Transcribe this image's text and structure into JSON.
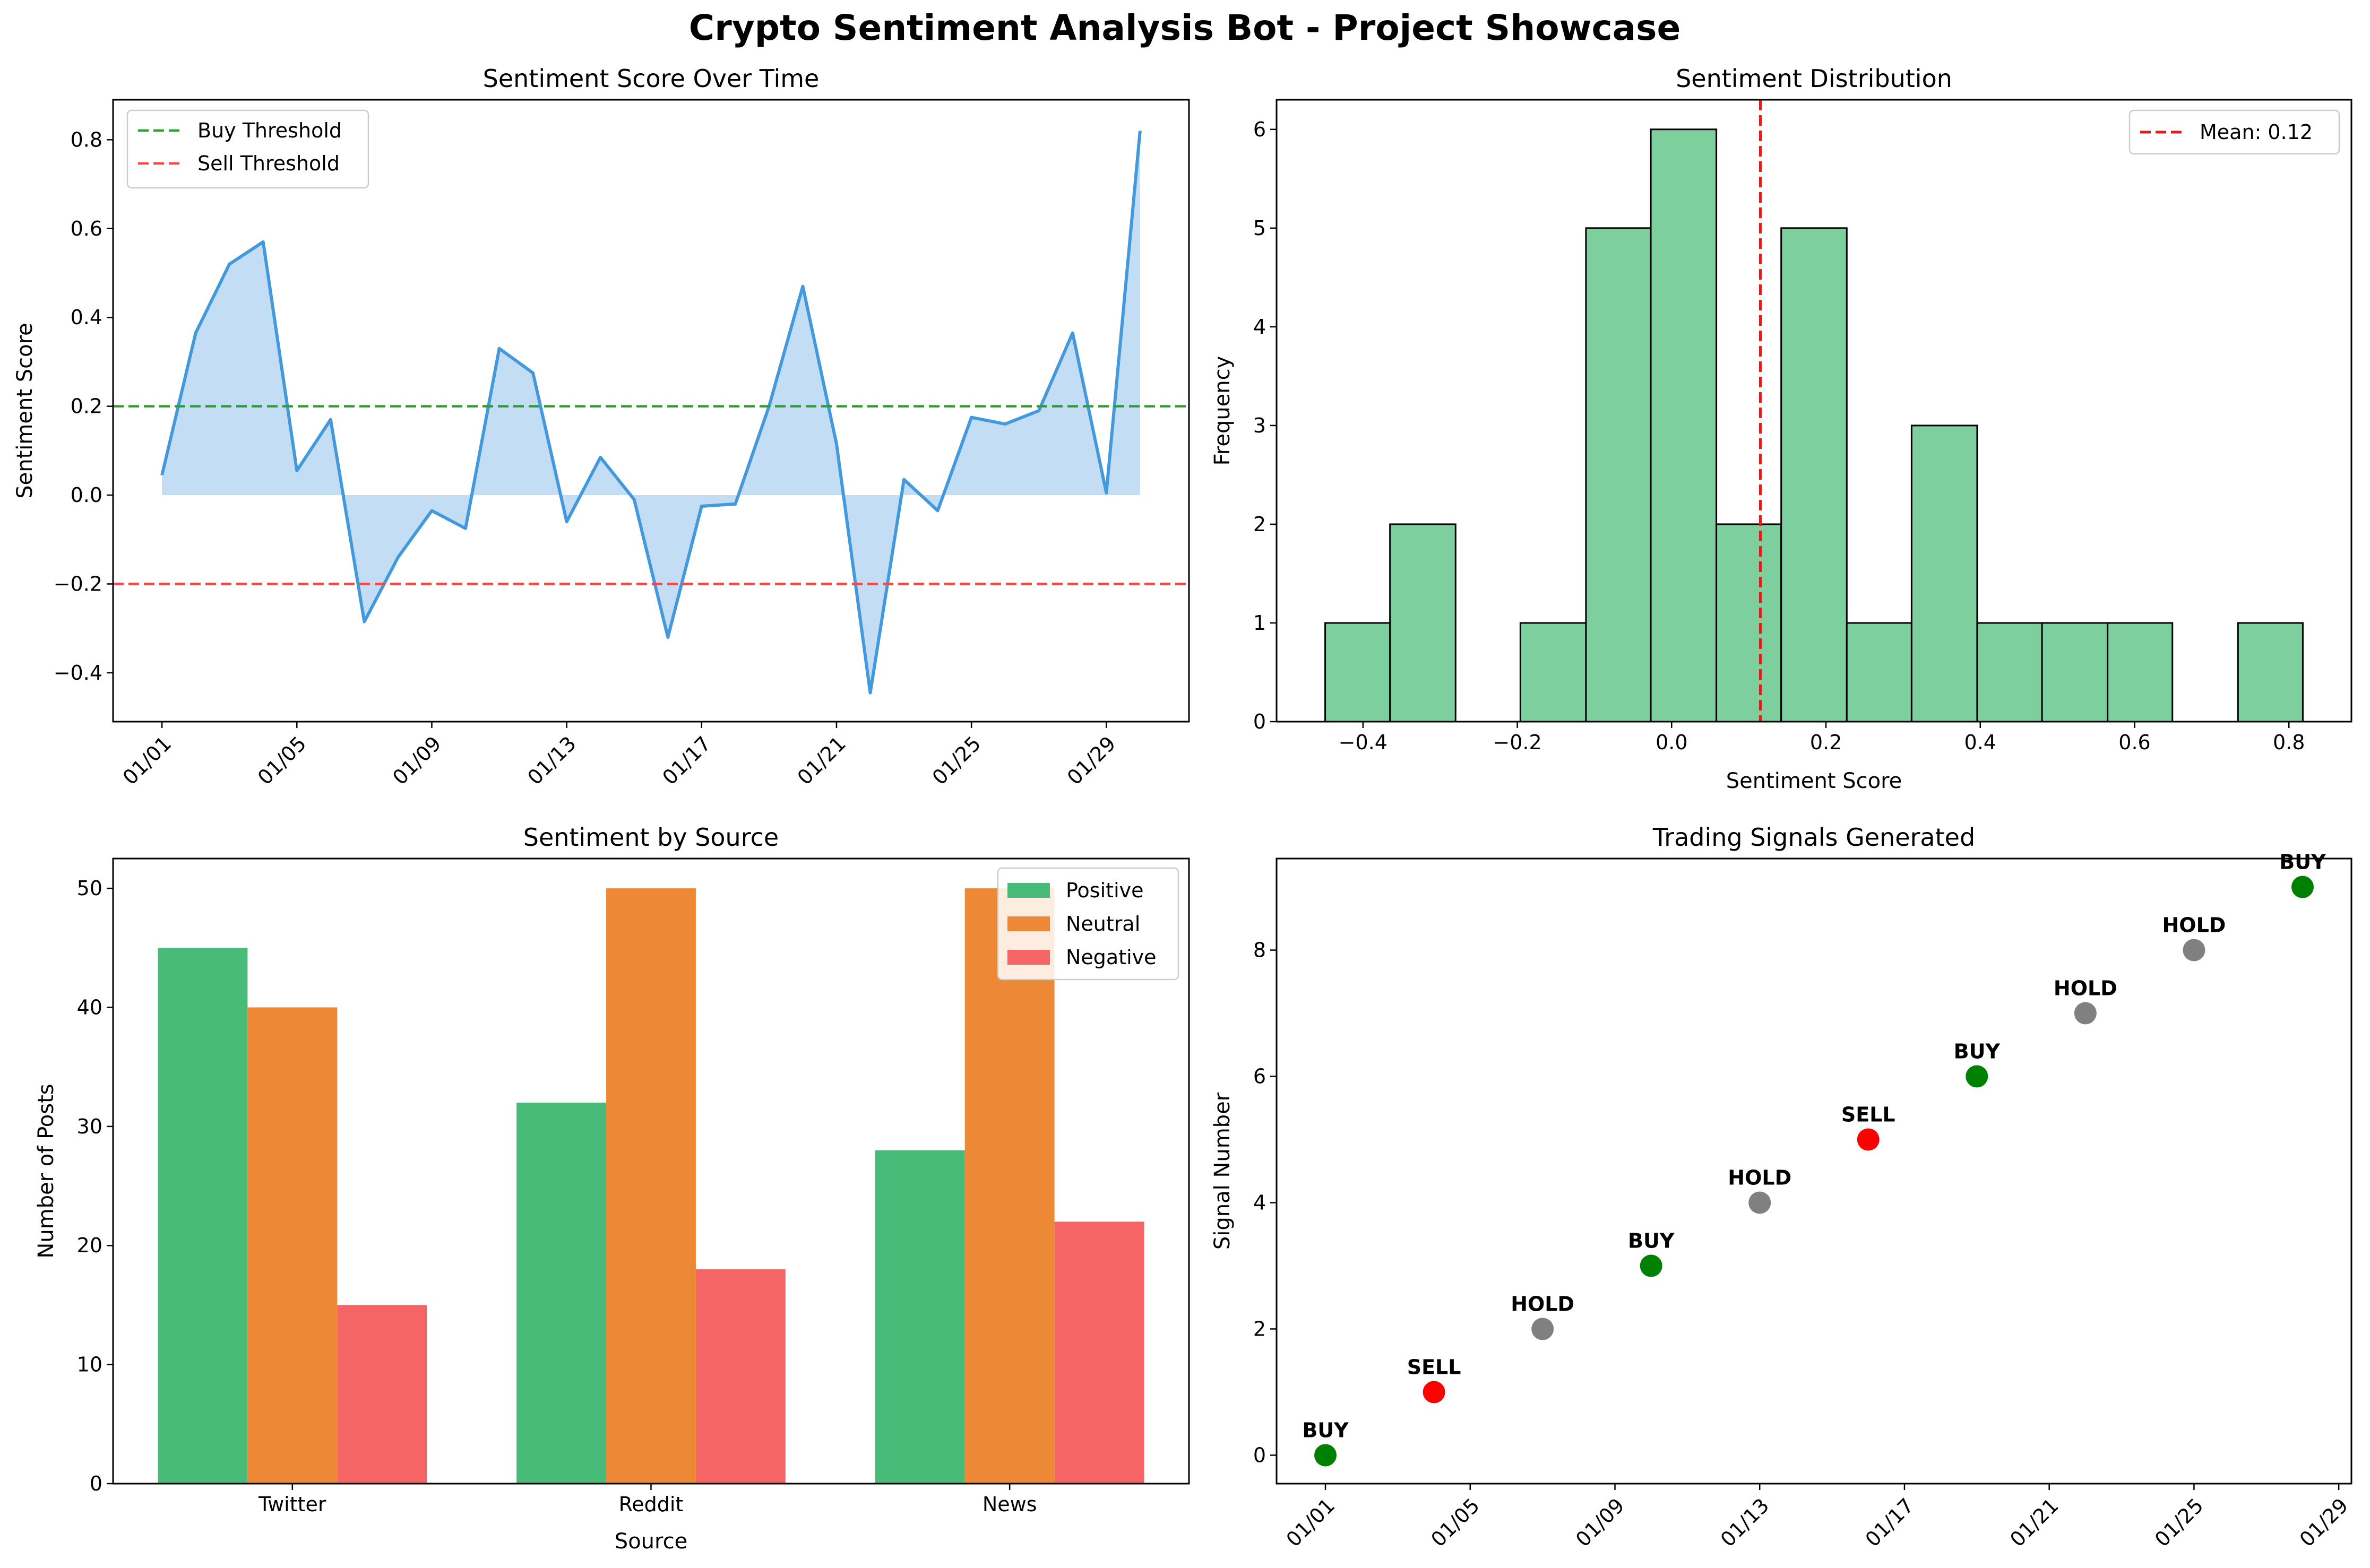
{
  "title": "Crypto Sentiment Analysis Bot - Project Showcase",
  "chart_data": [
    {
      "id": "sentiment_over_time",
      "type": "line",
      "title": "Sentiment Score Over Time",
      "xlabel": "",
      "ylabel": "Sentiment Score",
      "x": [
        "01/01",
        "01/02",
        "01/03",
        "01/04",
        "01/05",
        "01/06",
        "01/07",
        "01/08",
        "01/09",
        "01/10",
        "01/11",
        "01/12",
        "01/13",
        "01/14",
        "01/15",
        "01/16",
        "01/17",
        "01/18",
        "01/19",
        "01/20",
        "01/21",
        "01/22",
        "01/23",
        "01/24",
        "01/25",
        "01/26",
        "01/27",
        "01/28",
        "01/29",
        "01/30"
      ],
      "series": [
        {
          "values": [
            0.045,
            0.365,
            0.52,
            0.57,
            0.055,
            0.17,
            -0.285,
            -0.14,
            -0.035,
            -0.075,
            0.33,
            0.275,
            -0.06,
            0.085,
            -0.01,
            -0.32,
            -0.025,
            -0.02,
            0.2,
            0.47,
            0.115,
            -0.445,
            0.035,
            -0.035,
            0.175,
            0.16,
            0.19,
            0.365,
            0.005,
            0.82
          ],
          "color": "#4499dd",
          "fill": "#c2ddf4"
        }
      ],
      "hlines": [
        {
          "label": "Buy Threshold",
          "y": 0.2,
          "color": "#2ca02c"
        },
        {
          "label": "Sell Threshold",
          "y": -0.2,
          "color": "#ff4444"
        }
      ],
      "x_ticks": [
        "01/01",
        "01/05",
        "01/09",
        "01/13",
        "01/17",
        "01/21",
        "01/25",
        "01/29"
      ],
      "y_ticks": [
        -0.4,
        -0.2,
        0.0,
        0.2,
        0.4,
        0.6,
        0.8
      ],
      "ylim": [
        -0.51,
        0.89
      ],
      "legend_loc": "upper left"
    },
    {
      "id": "sentiment_distribution",
      "type": "bar",
      "title": "Sentiment Distribution",
      "xlabel": "Sentiment Score",
      "ylabel": "Frequency",
      "bins": [
        [
          -0.449,
          -0.365,
          1
        ],
        [
          -0.365,
          -0.28,
          2
        ],
        [
          -0.28,
          -0.196,
          0
        ],
        [
          -0.196,
          -0.111,
          1
        ],
        [
          -0.111,
          -0.027,
          5
        ],
        [
          -0.027,
          0.058,
          6
        ],
        [
          0.058,
          0.142,
          2
        ],
        [
          0.142,
          0.227,
          5
        ],
        [
          0.227,
          0.311,
          1
        ],
        [
          0.311,
          0.396,
          3
        ],
        [
          0.396,
          0.48,
          1
        ],
        [
          0.48,
          0.565,
          1
        ],
        [
          0.565,
          0.649,
          1
        ],
        [
          0.649,
          0.734,
          0
        ],
        [
          0.734,
          0.818,
          1
        ]
      ],
      "bar_color": "#7dcf9e",
      "mean": 0.115,
      "mean_label": "Mean: 0.12",
      "mean_color": "#e31a1c",
      "x_ticks": [
        -0.4,
        -0.2,
        0.0,
        0.2,
        0.4,
        0.6,
        0.8
      ],
      "y_ticks": [
        0,
        1,
        2,
        3,
        4,
        5,
        6
      ],
      "xlim": [
        -0.512,
        0.881
      ],
      "ylim": [
        0,
        6.3
      ],
      "legend_loc": "upper right"
    },
    {
      "id": "sentiment_by_source",
      "type": "bar",
      "title": "Sentiment by Source",
      "xlabel": "Source",
      "ylabel": "Number of Posts",
      "categories": [
        "Twitter",
        "Reddit",
        "News"
      ],
      "series": [
        {
          "name": "Positive",
          "values": [
            45,
            32,
            28
          ],
          "color": "#48bb78"
        },
        {
          "name": "Neutral",
          "values": [
            40,
            50,
            50
          ],
          "color": "#ed8936"
        },
        {
          "name": "Negative",
          "values": [
            15,
            18,
            22
          ],
          "color": "#f56565"
        }
      ],
      "y_ticks": [
        0,
        10,
        20,
        30,
        40,
        50
      ],
      "ylim": [
        0,
        52.5
      ],
      "legend_loc": "upper right"
    },
    {
      "id": "trading_signals",
      "type": "scatter",
      "title": "Trading Signals Generated",
      "xlabel": "",
      "ylabel": "Signal Number",
      "points": [
        {
          "date": "01/01",
          "y": 0,
          "signal": "BUY"
        },
        {
          "date": "01/04",
          "y": 1,
          "signal": "SELL"
        },
        {
          "date": "01/07",
          "y": 2,
          "signal": "HOLD"
        },
        {
          "date": "01/10",
          "y": 3,
          "signal": "BUY"
        },
        {
          "date": "01/13",
          "y": 4,
          "signal": "HOLD"
        },
        {
          "date": "01/16",
          "y": 5,
          "signal": "SELL"
        },
        {
          "date": "01/19",
          "y": 6,
          "signal": "BUY"
        },
        {
          "date": "01/22",
          "y": 7,
          "signal": "HOLD"
        },
        {
          "date": "01/25",
          "y": 8,
          "signal": "HOLD"
        },
        {
          "date": "01/28",
          "y": 9,
          "signal": "BUY"
        }
      ],
      "signal_colors": {
        "BUY": "#008000",
        "SELL": "#ff0000",
        "HOLD": "#808080"
      },
      "x_ticks": [
        "01/01",
        "01/05",
        "01/09",
        "01/13",
        "01/17",
        "01/21",
        "01/25",
        "01/29"
      ],
      "y_ticks": [
        0,
        2,
        4,
        6,
        8
      ],
      "ylim": [
        -0.45,
        9.45
      ]
    }
  ]
}
